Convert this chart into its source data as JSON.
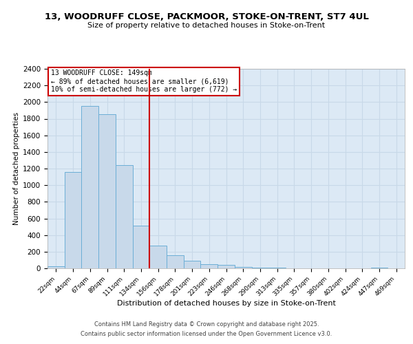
{
  "title": "13, WOODRUFF CLOSE, PACKMOOR, STOKE-ON-TRENT, ST7 4UL",
  "subtitle": "Size of property relative to detached houses in Stoke-on-Trent",
  "xlabel": "Distribution of detached houses by size in Stoke-on-Trent",
  "ylabel": "Number of detached properties",
  "bar_labels": [
    "22sqm",
    "44sqm",
    "67sqm",
    "89sqm",
    "111sqm",
    "134sqm",
    "156sqm",
    "178sqm",
    "201sqm",
    "223sqm",
    "246sqm",
    "268sqm",
    "290sqm",
    "313sqm",
    "335sqm",
    "357sqm",
    "380sqm",
    "402sqm",
    "424sqm",
    "447sqm",
    "469sqm"
  ],
  "bar_values": [
    25,
    1160,
    1950,
    1850,
    1240,
    510,
    270,
    155,
    90,
    47,
    40,
    15,
    5,
    12,
    3,
    2,
    2,
    2,
    1,
    12,
    2
  ],
  "bar_color": "#c8d9ea",
  "bar_edge_color": "#6baed6",
  "vline_x": 5.5,
  "vline_color": "#cc0000",
  "annotation_text": "13 WOODRUFF CLOSE: 149sqm\n← 89% of detached houses are smaller (6,619)\n10% of semi-detached houses are larger (772) →",
  "annotation_box_color": "#ffffff",
  "annotation_box_edge": "#cc0000",
  "ylim": [
    0,
    2400
  ],
  "yticks": [
    0,
    200,
    400,
    600,
    800,
    1000,
    1200,
    1400,
    1600,
    1800,
    2000,
    2200,
    2400
  ],
  "grid_color": "#c8d8e8",
  "bg_color": "#dce9f5",
  "fig_bg_color": "#ffffff",
  "footer_line1": "Contains HM Land Registry data © Crown copyright and database right 2025.",
  "footer_line2": "Contains public sector information licensed under the Open Government Licence v3.0."
}
